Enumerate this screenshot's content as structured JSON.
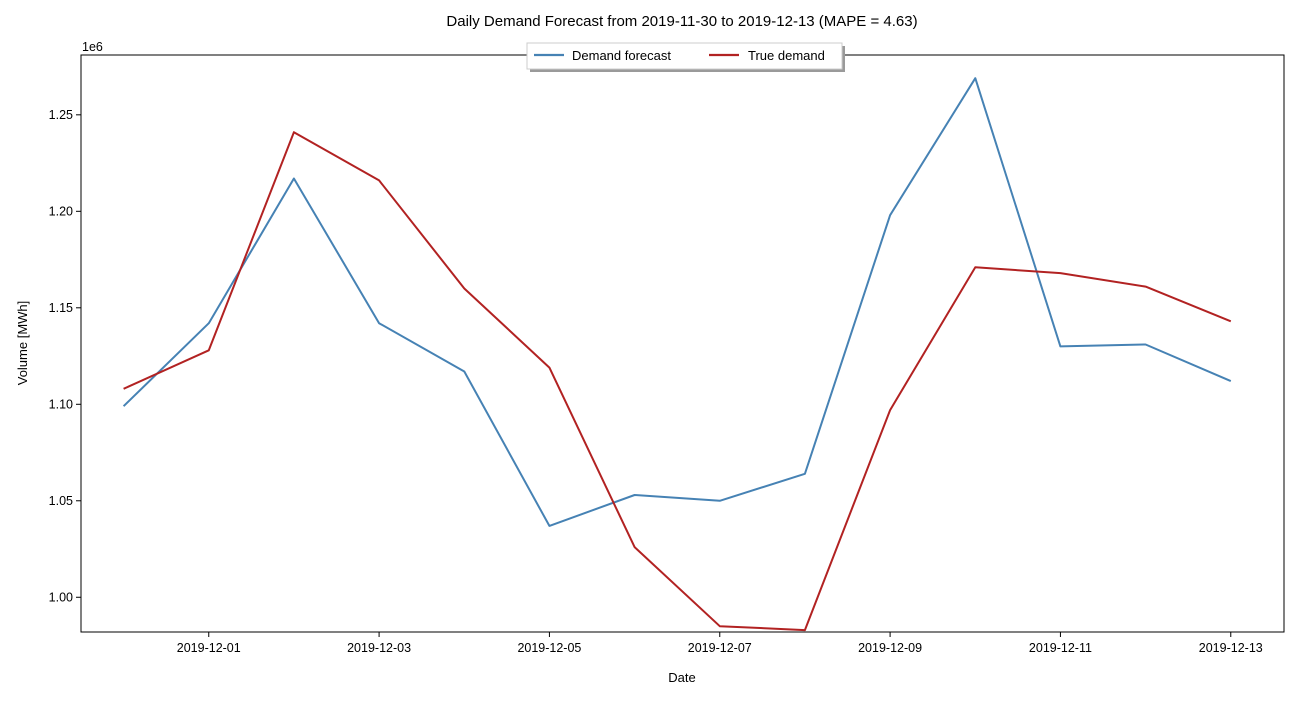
{
  "chart_data": {
    "type": "line",
    "title": "Daily Demand Forecast from 2019-11-30 to 2019-12-13 (MAPE = 4.63)",
    "xlabel": "Date",
    "ylabel": "Volume [MWh]",
    "y_offset_label": "1e6",
    "ylim": [
      0.982,
      1.281
    ],
    "y_ticks": [
      1.0,
      1.05,
      1.1,
      1.15,
      1.2,
      1.25
    ],
    "y_tick_labels": [
      "1.00",
      "1.05",
      "1.10",
      "1.15",
      "1.20",
      "1.25"
    ],
    "x_ticks": [
      "2019-12-01",
      "2019-12-03",
      "2019-12-05",
      "2019-12-07",
      "2019-12-09",
      "2019-12-11",
      "2019-12-13"
    ],
    "x": [
      "2019-11-30",
      "2019-12-01",
      "2019-12-02",
      "2019-12-03",
      "2019-12-04",
      "2019-12-05",
      "2019-12-06",
      "2019-12-07",
      "2019-12-08",
      "2019-12-09",
      "2019-12-10",
      "2019-12-11",
      "2019-12-12",
      "2019-12-13"
    ],
    "xlim": [
      "2019-11-29 12:00",
      "2019-12-13 15:00"
    ],
    "series": [
      {
        "name": "Demand forecast",
        "color": "#4682b4",
        "values": [
          1.099,
          1.142,
          1.217,
          1.142,
          1.117,
          1.037,
          1.053,
          1.05,
          1.064,
          1.198,
          1.269,
          1.13,
          1.131,
          1.112
        ]
      },
      {
        "name": "True demand",
        "color": "#b22222",
        "values": [
          1.108,
          1.128,
          1.241,
          1.216,
          1.16,
          1.119,
          1.026,
          0.985,
          0.983,
          1.097,
          1.171,
          1.168,
          1.161,
          1.143
        ]
      }
    ],
    "legend_position": "top-center",
    "grid": false
  }
}
